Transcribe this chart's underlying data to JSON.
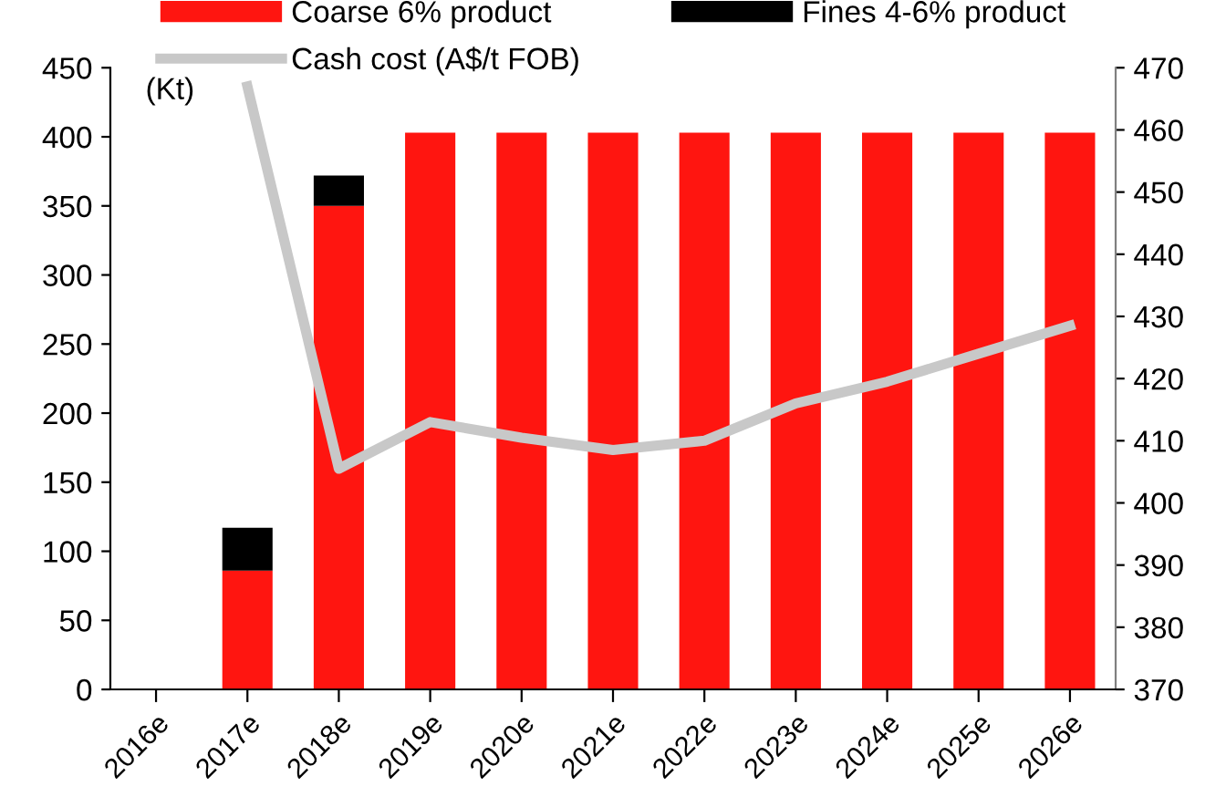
{
  "chart_data": {
    "type": "bar",
    "stacked": true,
    "ylabel": "(Kt)",
    "categories": [
      "2016e",
      "2017e",
      "2018e",
      "2019e",
      "2020e",
      "2021e",
      "2022e",
      "2023e",
      "2024e",
      "2025e",
      "2026e"
    ],
    "series": [
      {
        "name": "Coarse 6% product",
        "color": "#ff1510",
        "values": [
          0,
          86,
          350,
          403,
          403,
          403,
          403,
          403,
          403,
          403,
          403
        ]
      },
      {
        "name": "Fines 4-6% product",
        "color": "#000000",
        "values": [
          0,
          31,
          22,
          0,
          0,
          0,
          0,
          0,
          0,
          0,
          0
        ]
      },
      {
        "name": "Cash cost (A$/t FOB)",
        "color": "#c8c8c8",
        "type": "line",
        "axis": "y2",
        "values": [
          null,
          467,
          405.5,
          413,
          410.5,
          408.5,
          410,
          416,
          419.5,
          424,
          428.5
        ]
      }
    ],
    "ylim": [
      0,
      450
    ],
    "yticks": [
      0,
      50,
      100,
      150,
      200,
      250,
      300,
      350,
      400,
      450
    ],
    "y2lim": [
      370,
      470
    ],
    "y2ticks": [
      370,
      380,
      390,
      400,
      410,
      420,
      430,
      440,
      450,
      460,
      470
    ],
    "grid": false,
    "legend": "top",
    "marker": "none"
  }
}
